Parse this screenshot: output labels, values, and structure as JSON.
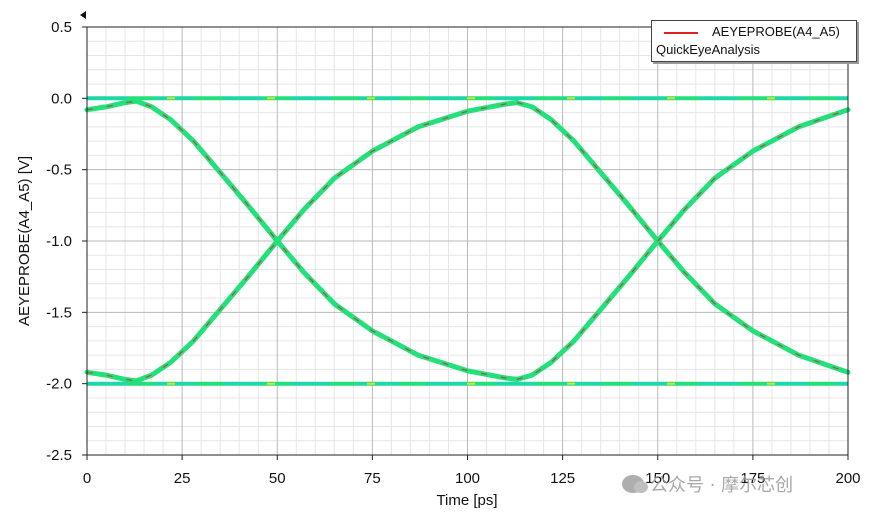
{
  "chart_data": {
    "type": "line",
    "xlabel": "Time [ps]",
    "ylabel": "AEYEPROBE(A4_A5) [V]",
    "xlim": [
      0,
      200
    ],
    "ylim": [
      -2.5,
      0.5
    ],
    "x_ticks": [
      "0",
      "25",
      "50",
      "75",
      "100",
      "125",
      "150",
      "175",
      "200"
    ],
    "y_ticks": [
      "0.5",
      "0.0",
      "-0.5",
      "-1.0",
      "-1.5",
      "-2.0",
      "-2.5"
    ],
    "grid": true,
    "legend_position": "top-right",
    "series": [
      {
        "name": "AEYEPROBE(A4_A5)",
        "color": "#e02020",
        "traces": {
          "falling_left": [
            [
              0,
              -0.08
            ],
            [
              5,
              -0.06
            ],
            [
              10,
              -0.03
            ],
            [
              13,
              -0.02
            ],
            [
              17,
              -0.06
            ],
            [
              22,
              -0.15
            ],
            [
              28,
              -0.3
            ],
            [
              35,
              -0.52
            ],
            [
              42,
              -0.74
            ],
            [
              50,
              -1.0
            ],
            [
              57,
              -1.22
            ],
            [
              65,
              -1.44
            ],
            [
              75,
              -1.63
            ],
            [
              87,
              -1.8
            ],
            [
              100,
              -1.91
            ],
            [
              110,
              -1.96
            ],
            [
              113,
              -1.97
            ]
          ],
          "rising_left": [
            [
              0,
              -1.92
            ],
            [
              5,
              -1.94
            ],
            [
              10,
              -1.97
            ],
            [
              13,
              -1.98
            ],
            [
              17,
              -1.94
            ],
            [
              22,
              -1.85
            ],
            [
              28,
              -1.7
            ],
            [
              35,
              -1.48
            ],
            [
              42,
              -1.26
            ],
            [
              50,
              -1.0
            ],
            [
              57,
              -0.78
            ],
            [
              65,
              -0.56
            ],
            [
              75,
              -0.37
            ],
            [
              87,
              -0.2
            ],
            [
              100,
              -0.09
            ],
            [
              110,
              -0.04
            ],
            [
              113,
              -0.03
            ]
          ],
          "falling_right": [
            [
              113,
              -0.03
            ],
            [
              117,
              -0.06
            ],
            [
              122,
              -0.15
            ],
            [
              128,
              -0.3
            ],
            [
              135,
              -0.52
            ],
            [
              142,
              -0.74
            ],
            [
              150,
              -1.0
            ],
            [
              157,
              -1.22
            ],
            [
              165,
              -1.44
            ],
            [
              175,
              -1.63
            ],
            [
              187,
              -1.8
            ],
            [
              200,
              -1.92
            ]
          ],
          "rising_right": [
            [
              113,
              -1.97
            ],
            [
              117,
              -1.94
            ],
            [
              122,
              -1.85
            ],
            [
              128,
              -1.7
            ],
            [
              135,
              -1.48
            ],
            [
              142,
              -1.26
            ],
            [
              150,
              -1.0
            ],
            [
              157,
              -0.78
            ],
            [
              165,
              -0.56
            ],
            [
              175,
              -0.37
            ],
            [
              187,
              -0.2
            ],
            [
              200,
              -0.08
            ]
          ],
          "high_level": [
            [
              0,
              0.0
            ],
            [
              200,
              0.0
            ]
          ],
          "low_level": [
            [
              0,
              -2.0
            ],
            [
              200,
              -2.0
            ]
          ]
        }
      }
    ],
    "density_colors": [
      "#22e07a",
      "#1ad0d0",
      "#e0e020",
      "#2050e0"
    ]
  },
  "legend": {
    "entry": "AEYEPROBE(A4_A5)",
    "subtitle": "QuickEyeAnalysis"
  },
  "watermark": {
    "text": "公众号 · 摩尔芯创"
  }
}
